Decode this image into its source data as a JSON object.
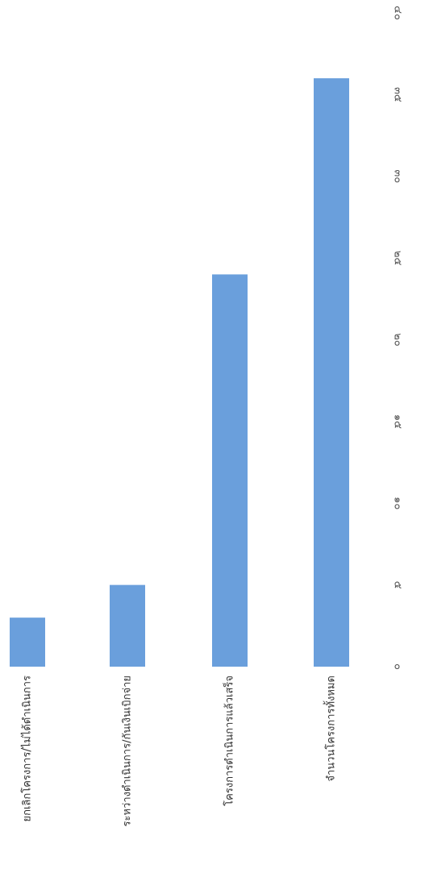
{
  "chart_data": {
    "type": "bar",
    "orientation": "horizontal",
    "rotation": "page rotated 90° clockwise",
    "categories": [
      "ยกเลิกโครงการ/ไม่ได้ดำเนินการ",
      "ระหว่างดำเนินการ/กันเงินเบิกจ่าย",
      "โครงการดำเนินการแล้วเสร็จ",
      "จำนวนโครงการทั้งหมด"
    ],
    "values": [
      3,
      5,
      24,
      36
    ],
    "xlim": [
      0,
      40
    ],
    "ticks": [
      {
        "value": 0,
        "label": "๐"
      },
      {
        "value": 5,
        "label": "๕"
      },
      {
        "value": 10,
        "label": "๑๐"
      },
      {
        "value": 15,
        "label": "๑๕"
      },
      {
        "value": 20,
        "label": "๒๐"
      },
      {
        "value": 25,
        "label": "๒๕"
      },
      {
        "value": 30,
        "label": "๓๐"
      },
      {
        "value": 35,
        "label": "๓๕"
      },
      {
        "value": 40,
        "label": "๔๐"
      }
    ],
    "bar_color": "#6a9fdc",
    "grid": false,
    "title": "",
    "xlabel": "",
    "ylabel": ""
  }
}
